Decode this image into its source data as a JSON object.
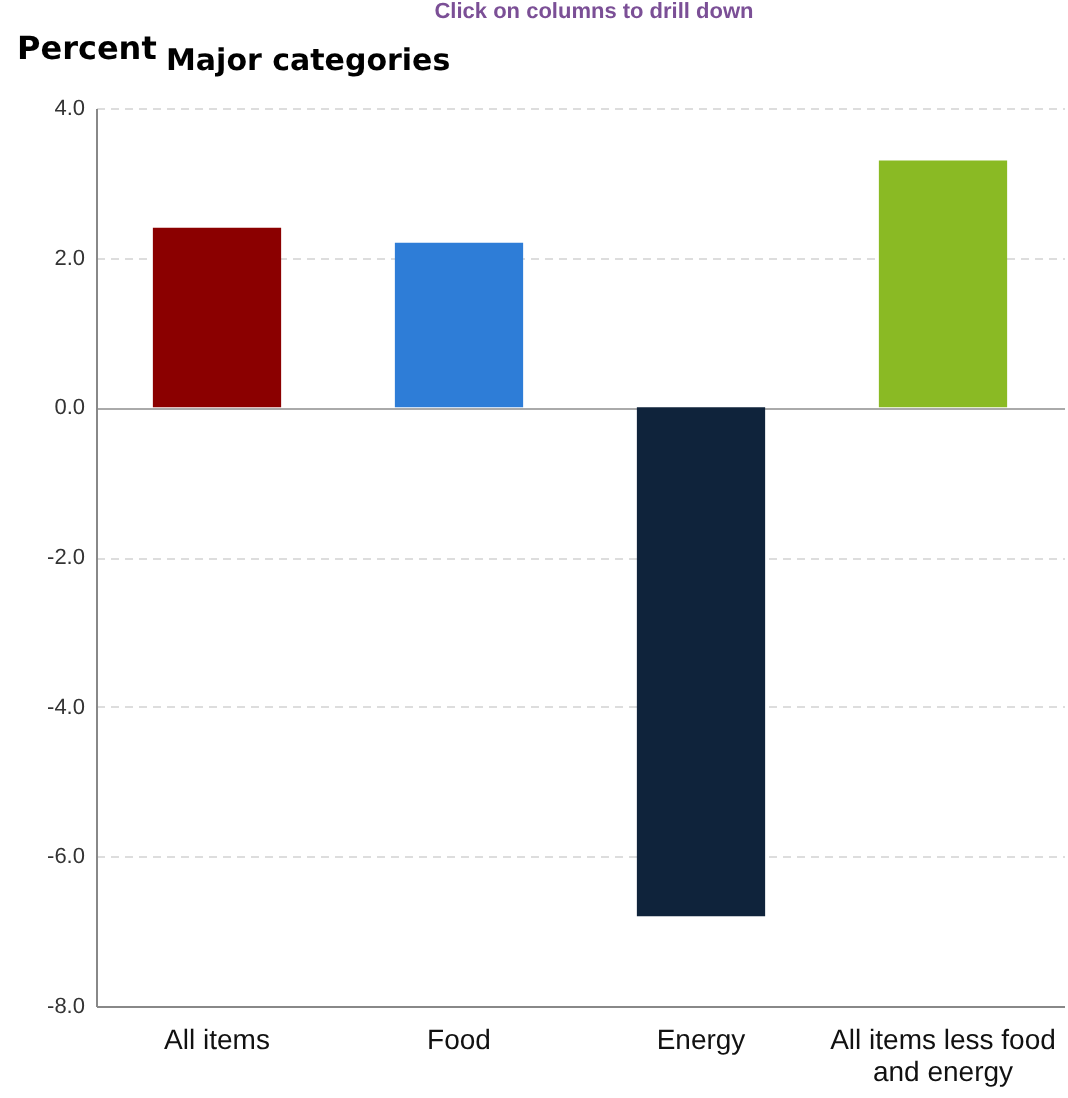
{
  "chart_data": {
    "type": "bar",
    "title": "Major categories",
    "subtitle": "Click on columns to drill down",
    "ylabel": "Percent",
    "categories": [
      "All items",
      "Food",
      "Energy",
      "All items less food and energy"
    ],
    "values": [
      2.4,
      2.2,
      -6.8,
      3.3
    ],
    "colors": [
      "#8b0000",
      "#2e7dd7",
      "#0f233b",
      "#8aba24"
    ],
    "ylim": [
      -8,
      4
    ],
    "yticks": [
      {
        "value": -8,
        "label": "-8.0"
      },
      {
        "value": -6,
        "label": "-6.0"
      },
      {
        "value": -4,
        "label": "-4.0"
      },
      {
        "value": -2,
        "label": "-2.0"
      },
      {
        "value": 0,
        "label": "0.0"
      },
      {
        "value": 2,
        "label": "2.0"
      },
      {
        "value": 4,
        "label": "4.0"
      }
    ],
    "grid": "y"
  }
}
